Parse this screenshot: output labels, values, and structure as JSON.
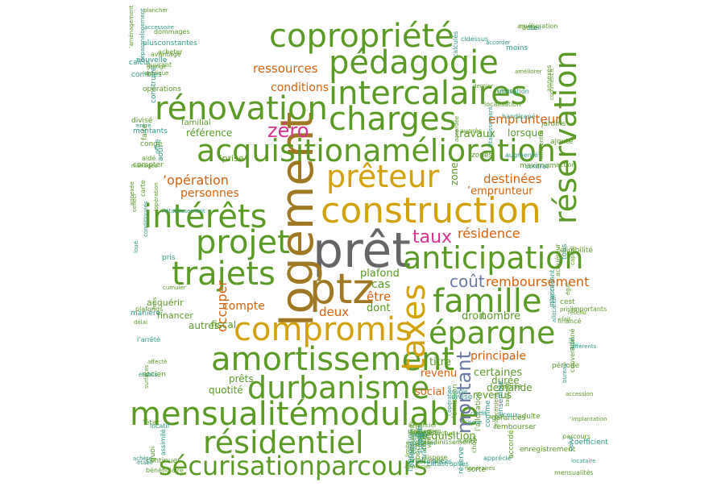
{
  "palette": {
    "green": "#5a9b26",
    "olive": "#5a9b26",
    "gold": "#d4a10a",
    "orange": "#d5620e",
    "magenta": "#d6338f",
    "grey": "#666666",
    "brown": "#a07722",
    "teal": "#2f9a86",
    "slate": "#6a78a6",
    "background": "#ffffff"
  },
  "words": {
    "pret": "prêt",
    "logement": "logement",
    "ptz": "ptz",
    "construction": "construction",
    "famille": "famille",
    "anticipation": "anticipation",
    "amortissement": "amortissement",
    "compromis": "compromis",
    "acquisitionamelioration": "acquisitionamélioration",
    "mensualitemodulable": "mensualitémodulable",
    "securisationparcours": "sécurisationparcours",
    "residentiel": "résidentiel",
    "durbanisme": "durbanisme",
    "copropriete": "copropriété",
    "pedagogie": "pédagogie",
    "intercalaires": "intercalaires",
    "renovation": "rénovation",
    "charges": "charges",
    "reservation": "réservation",
    "interets": "intérêts",
    "projet": "projet",
    "trajets": "trajets",
    "preteur": "prêteur",
    "taxes": "taxes",
    "epargne": "épargne",
    "montant": "montant",
    "zero": "zéro",
    "taux": "taux",
    "cout": "coût",
    "remboursement": "remboursement",
    "residence": "résidence",
    "ressources": "ressources",
    "conditions": "conditions",
    "operation": "’opération",
    "personnes": "personnes",
    "destinees": "destinées",
    "emprunteur1": "emprunteur",
    "emprunteur2": "’emprunteur",
    "occuper": "occuper",
    "compte": "compte",
    "deux": "deux",
    "etre": "être",
    "cas": "cas",
    "plafond": "plafond",
    "principale": "principale",
    "revenu": "revenu",
    "social": "social",
    "travaux": "travaux",
    "titre": "titre",
    "certaines": "certaines",
    "nombre": "nombre",
    "dont": "dont",
    "droit": "droit",
    "autres": "autres",
    "fiscal": "fiscal",
    "quotite": "quotité",
    "prets": "prêts",
    "financer": "financer",
    "acquerir": "acquérir",
    "zone": "zone",
    "acquisition_s": "’acquisition",
    "reference": "référence",
    "familial": "familial",
    "prise": "’prise",
    "duree": "durée",
    "demande": "demande",
    "revenus": "revenus",
    "lorsque": "lorsque"
  },
  "small_words": [
    "combles",
    "durées",
    "achète",
    "prises",
    "l’allocation",
    "l’imposition",
    "grange",
    "cidessus",
    "cumuler",
    "’importants",
    "apprécié",
    "lesquels",
    "entre",
    "ajouté",
    "bénéficiaire",
    "allocation",
    "sorte",
    "’option",
    "faite",
    "auprès",
    "l’établissement",
    "parcours",
    "réserve",
    "concourant",
    "plancher",
    "calculés",
    "’opération",
    "tous",
    "’achat",
    "naturelle",
    "construire",
    "accordée",
    "loué",
    "financé",
    "garanties",
    "’offre",
    "aidé",
    "handicapé",
    "continuer",
    "’éligibilité",
    "ceux",
    "six",
    "calcul",
    "’acte",
    "délai",
    "adil",
    "cadre",
    "obtenir",
    "dommages",
    "annexes",
    "conditionnés",
    "mensualités",
    "comme",
    "’exception",
    "divisé",
    "moins",
    "frais",
    "celui",
    "adulte",
    "limite",
    "nouvelle",
    "commence",
    "l’arrêté",
    "conventionné",
    "financement",
    "transfert",
    "ouvrant",
    "’établissement",
    "’état",
    "retenu",
    "l’opération",
    "coûts",
    "’accessoire",
    "dernier",
    "affecté",
    "afférents",
    "émise",
    "causés",
    "compter",
    "jardins",
    "pris",
    "fait",
    "’ensemble",
    "’effectue",
    "’aménagement",
    "augmenté",
    "annexée",
    "maison",
    "choix",
    "dispose",
    "plusconstantes",
    "améliorer",
    "manière",
    "accession",
    "’émission",
    "’octroi",
    "avantage",
    "’utilisation",
    "ancien",
    "’implantation",
    "crédit",
    "assainissement",
    "montants",
    "localisation",
    "carte",
    "locataire",
    "honoraires",
    "suivants",
    "ménages",
    "maximum",
    "établi",
    "période",
    "’issue",
    "vente",
    "acheter",
    "contrat",
    "surfaces",
    "coefficient",
    "bancaire",
    "seule",
    "août",
    "afférentes",
    "établis",
    "cest",
    "enregistrement",
    "catastrophes",
    "’applique",
    "accorder",
    "celleci",
    "acquéreur",
    "couple",
    "occupants",
    "offre",
    "amélioration",
    "plafonds",
    "bureau",
    "accordé",
    "assurances",
    "congé",
    "action",
    "assimilé",
    "égal",
    "divise",
    "apprécier",
    "opérations",
    "bâtir",
    "quoi",
    "l’accédant",
    "rembourser",
    "bénéficier",
    "dépargnelogement",
    "zones",
    "locatif",
    "capital"
  ]
}
